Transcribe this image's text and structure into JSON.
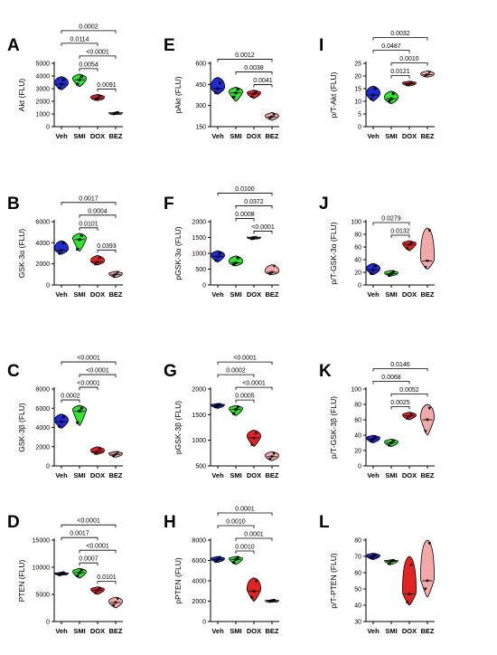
{
  "colors": {
    "Veh": "#1f2bd6",
    "SMI": "#2ee62e",
    "DOX": "#e32222",
    "BEZ": "#f4a9a9"
  },
  "chart_data": [
    {
      "type": "violin",
      "letter": "A",
      "ylabel": "Akt (FLU)",
      "categories": [
        "Veh",
        "SMI",
        "DOX",
        "BEZ"
      ],
      "yticks": [
        0,
        1000,
        2000,
        3000,
        4000,
        5000
      ],
      "ylim": [
        0,
        5000
      ],
      "series": [
        {
          "min": 2900,
          "max": 3950,
          "median": 3350,
          "points": [
            3050,
            3350,
            3700
          ]
        },
        {
          "min": 3150,
          "max": 4150,
          "median": 3700,
          "points": [
            3350,
            3700,
            3950
          ]
        },
        {
          "min": 2050,
          "max": 2550,
          "median": 2250,
          "points": [
            2150,
            2250,
            2450
          ]
        },
        {
          "min": 950,
          "max": 1150,
          "median": 1050,
          "points": [
            980,
            1050,
            1110
          ]
        }
      ],
      "comparisons": [
        {
          "from": 0,
          "to": 3,
          "p": "0.0002"
        },
        {
          "from": 1,
          "to": 3,
          "p": "<0.0001"
        },
        {
          "from": 0,
          "to": 2,
          "p": "0.0114"
        },
        {
          "from": 2,
          "to": 3,
          "p": "0.0091"
        },
        {
          "from": 1,
          "to": 2,
          "p": "0.0054"
        }
      ]
    },
    {
      "type": "violin",
      "letter": "E",
      "ylabel": "pAkt (FLU)",
      "categories": [
        "Veh",
        "SMI",
        "DOX",
        "BEZ"
      ],
      "yticks": [
        150,
        300,
        450,
        600
      ],
      "ylim": [
        150,
        600
      ],
      "series": [
        {
          "min": 380,
          "max": 500,
          "median": 420,
          "points": [
            390,
            420,
            460
          ]
        },
        {
          "min": 330,
          "max": 430,
          "median": 390,
          "points": [
            360,
            390,
            415
          ]
        },
        {
          "min": 350,
          "max": 410,
          "median": 385,
          "points": [
            365,
            385,
            400
          ]
        },
        {
          "min": 195,
          "max": 250,
          "median": 220,
          "points": [
            210,
            220,
            235
          ]
        }
      ],
      "comparisons": [
        {
          "from": 0,
          "to": 3,
          "p": "0.0012"
        },
        {
          "from": 1,
          "to": 3,
          "p": "0.0038"
        },
        {
          "from": 2,
          "to": 3,
          "p": "0.0041"
        }
      ]
    },
    {
      "type": "violin",
      "letter": "I",
      "ylabel": "p/T-Akt (FLU)",
      "categories": [
        "Veh",
        "SMI",
        "DOX",
        "BEZ"
      ],
      "yticks": [
        0,
        5,
        10,
        15,
        20,
        25
      ],
      "ylim": [
        0,
        25
      ],
      "series": [
        {
          "min": 10,
          "max": 16,
          "median": 12.5,
          "points": [
            11,
            12.5,
            15
          ]
        },
        {
          "min": 9,
          "max": 14,
          "median": 11,
          "points": [
            10,
            11,
            13
          ]
        },
        {
          "min": 16,
          "max": 18,
          "median": 17,
          "points": [
            16.5,
            17,
            17.5
          ]
        },
        {
          "min": 19.5,
          "max": 22,
          "median": 20.5,
          "points": [
            20,
            20.5,
            21.5
          ]
        }
      ],
      "comparisons": [
        {
          "from": 0,
          "to": 3,
          "p": "0.0032"
        },
        {
          "from": 1,
          "to": 3,
          "p": "0.0010"
        },
        {
          "from": 0,
          "to": 2,
          "p": "0.0487"
        },
        {
          "from": 1,
          "to": 2,
          "p": "0.0121"
        }
      ]
    },
    {
      "type": "violin",
      "letter": "B",
      "ylabel": "GSK-3α (FLU)",
      "categories": [
        "Veh",
        "SMI",
        "DOX",
        "BEZ"
      ],
      "yticks": [
        0,
        2000,
        4000,
        6000
      ],
      "ylim": [
        0,
        6000
      ],
      "series": [
        {
          "min": 2900,
          "max": 4200,
          "median": 3300,
          "points": [
            3000,
            3300,
            4000
          ]
        },
        {
          "min": 3200,
          "max": 4900,
          "median": 4300,
          "points": [
            3400,
            4300,
            4700
          ]
        },
        {
          "min": 1900,
          "max": 2800,
          "median": 2200,
          "points": [
            2000,
            2200,
            2600
          ]
        },
        {
          "min": 700,
          "max": 1300,
          "median": 1000,
          "points": [
            800,
            1000,
            1200
          ]
        }
      ],
      "comparisons": [
        {
          "from": 0,
          "to": 3,
          "p": "0.0017"
        },
        {
          "from": 1,
          "to": 3,
          "p": "0.0004"
        },
        {
          "from": 2,
          "to": 3,
          "p": "0.0393"
        },
        {
          "from": 1,
          "to": 2,
          "p": "0.0101"
        }
      ]
    },
    {
      "type": "violin",
      "letter": "F",
      "ylabel": "pGSK-3α (FLU)",
      "categories": [
        "Veh",
        "SMI",
        "DOX",
        "BEZ"
      ],
      "yticks": [
        0,
        500,
        1000,
        1500,
        2000
      ],
      "ylim": [
        0,
        2000
      ],
      "series": [
        {
          "min": 720,
          "max": 1080,
          "median": 900,
          "points": [
            780,
            900,
            1000
          ]
        },
        {
          "min": 600,
          "max": 920,
          "median": 700,
          "points": [
            640,
            700,
            850
          ]
        },
        {
          "min": 1440,
          "max": 1530,
          "median": 1490,
          "points": [
            1460,
            1490,
            1510
          ]
        },
        {
          "min": 320,
          "max": 640,
          "median": 400,
          "points": [
            350,
            400,
            600
          ]
        }
      ],
      "comparisons": [
        {
          "from": 0,
          "to": 3,
          "p": "0.0100"
        },
        {
          "from": 1,
          "to": 3,
          "p": "0.0372"
        },
        {
          "from": 2,
          "to": 3,
          "p": "<0.0001"
        },
        {
          "from": 1,
          "to": 2,
          "p": "0.0008"
        }
      ]
    },
    {
      "type": "violin",
      "letter": "J",
      "ylabel": "p/T-GSK-3α (FLU)",
      "categories": [
        "Veh",
        "SMI",
        "DOX",
        "BEZ"
      ],
      "yticks": [
        0,
        20,
        40,
        60,
        80,
        100
      ],
      "ylim": [
        0,
        100
      ],
      "series": [
        {
          "min": 16,
          "max": 34,
          "median": 24,
          "points": [
            18,
            24,
            30
          ]
        },
        {
          "min": 14,
          "max": 23,
          "median": 18,
          "points": [
            15,
            18,
            21
          ]
        },
        {
          "min": 54,
          "max": 70,
          "median": 64,
          "points": [
            58,
            64,
            67
          ]
        },
        {
          "min": 25,
          "max": 90,
          "median": 38,
          "points": [
            28,
            38,
            86
          ]
        }
      ],
      "comparisons": [
        {
          "from": 0,
          "to": 2,
          "p": "0.0279"
        },
        {
          "from": 1,
          "to": 2,
          "p": "0.0132"
        }
      ]
    },
    {
      "type": "violin",
      "letter": "C",
      "ylabel": "GSK-3β (FLU)",
      "categories": [
        "Veh",
        "SMI",
        "DOX",
        "BEZ"
      ],
      "yticks": [
        0,
        2000,
        4000,
        6000,
        8000
      ],
      "ylim": [
        0,
        8000
      ],
      "series": [
        {
          "min": 3900,
          "max": 5400,
          "median": 4600,
          "points": [
            4100,
            4600,
            5100
          ]
        },
        {
          "min": 4200,
          "max": 6300,
          "median": 5700,
          "points": [
            4500,
            5700,
            6000
          ]
        },
        {
          "min": 1200,
          "max": 2000,
          "median": 1500,
          "points": [
            1300,
            1500,
            1800
          ]
        },
        {
          "min": 900,
          "max": 1500,
          "median": 1200,
          "points": [
            1000,
            1200,
            1400
          ]
        }
      ],
      "comparisons": [
        {
          "from": 0,
          "to": 3,
          "p": "<0.0001"
        },
        {
          "from": 1,
          "to": 3,
          "p": "<0.0001"
        },
        {
          "from": 0,
          "to": 1,
          "p": "0.0002"
        },
        {
          "from": 1,
          "to": 2,
          "p": "<0.0001"
        }
      ]
    },
    {
      "type": "violin",
      "letter": "G",
      "ylabel": "pGSK-3β (FLU)",
      "categories": [
        "Veh",
        "SMI",
        "DOX",
        "BEZ"
      ],
      "yticks": [
        500,
        1000,
        1500,
        2000
      ],
      "ylim": [
        500,
        2000
      ],
      "series": [
        {
          "min": 1620,
          "max": 1720,
          "median": 1680,
          "points": [
            1650,
            1680,
            1700
          ]
        },
        {
          "min": 1480,
          "max": 1680,
          "median": 1600,
          "points": [
            1520,
            1600,
            1650
          ]
        },
        {
          "min": 880,
          "max": 1200,
          "median": 1050,
          "points": [
            920,
            1050,
            1150
          ]
        },
        {
          "min": 600,
          "max": 780,
          "median": 680,
          "points": [
            630,
            680,
            740
          ]
        }
      ],
      "comparisons": [
        {
          "from": 0,
          "to": 3,
          "p": "<0.0001"
        },
        {
          "from": 1,
          "to": 3,
          "p": "<0.0001"
        },
        {
          "from": 0,
          "to": 2,
          "p": "0.0002"
        },
        {
          "from": 1,
          "to": 2,
          "p": "0.0005"
        }
      ]
    },
    {
      "type": "violin",
      "letter": "K",
      "ylabel": "p/T-GSK-3β (FLU)",
      "categories": [
        "Veh",
        "SMI",
        "DOX",
        "BEZ"
      ],
      "yticks": [
        0,
        20,
        40,
        60,
        80,
        100
      ],
      "ylim": [
        0,
        100
      ],
      "series": [
        {
          "min": 30,
          "max": 40,
          "median": 35,
          "points": [
            32,
            35,
            38
          ]
        },
        {
          "min": 25,
          "max": 35,
          "median": 30,
          "points": [
            27,
            30,
            33
          ]
        },
        {
          "min": 60,
          "max": 70,
          "median": 65,
          "points": [
            62,
            65,
            68
          ]
        },
        {
          "min": 40,
          "max": 80,
          "median": 60,
          "points": [
            45,
            60,
            75
          ]
        }
      ],
      "comparisons": [
        {
          "from": 0,
          "to": 3,
          "p": "0.0146"
        },
        {
          "from": 1,
          "to": 3,
          "p": "0.0052"
        },
        {
          "from": 0,
          "to": 2,
          "p": "0.0068"
        },
        {
          "from": 1,
          "to": 2,
          "p": "0.0025"
        }
      ]
    },
    {
      "type": "violin",
      "letter": "D",
      "ylabel": "PTEN (FLU)",
      "categories": [
        "Veh",
        "SMI",
        "DOX",
        "BEZ"
      ],
      "yticks": [
        0,
        5000,
        10000,
        15000
      ],
      "ylim": [
        0,
        15000
      ],
      "series": [
        {
          "min": 8500,
          "max": 9100,
          "median": 8800,
          "points": [
            8600,
            8800,
            9000
          ]
        },
        {
          "min": 8000,
          "max": 9800,
          "median": 9000,
          "points": [
            8400,
            9000,
            9500
          ]
        },
        {
          "min": 5000,
          "max": 6400,
          "median": 5800,
          "points": [
            5300,
            5800,
            6200
          ]
        },
        {
          "min": 2500,
          "max": 4500,
          "median": 3500,
          "points": [
            3000,
            3500,
            4200
          ]
        }
      ],
      "comparisons": [
        {
          "from": 0,
          "to": 3,
          "p": "<0.0001"
        },
        {
          "from": 1,
          "to": 3,
          "p": "<0.0001"
        },
        {
          "from": 0,
          "to": 2,
          "p": "0.0017"
        },
        {
          "from": 2,
          "to": 3,
          "p": "0.0101"
        },
        {
          "from": 1,
          "to": 2,
          "p": "0.0007"
        }
      ]
    },
    {
      "type": "violin",
      "letter": "H",
      "ylabel": "pPTEN (FLU)",
      "categories": [
        "Veh",
        "SMI",
        "DOX",
        "BEZ"
      ],
      "yticks": [
        0,
        2000,
        4000,
        6000,
        8000
      ],
      "ylim": [
        0,
        8000
      ],
      "series": [
        {
          "min": 5800,
          "max": 6400,
          "median": 6100,
          "points": [
            5900,
            6100,
            6300
          ]
        },
        {
          "min": 5600,
          "max": 6400,
          "median": 6100,
          "points": [
            5800,
            6100,
            6300
          ]
        },
        {
          "min": 2000,
          "max": 4300,
          "median": 3000,
          "points": [
            2400,
            3000,
            4000
          ]
        },
        {
          "min": 1900,
          "max": 2150,
          "median": 2000,
          "points": [
            1950,
            2000,
            2100
          ]
        }
      ],
      "comparisons": [
        {
          "from": 0,
          "to": 3,
          "p": "0.0001"
        },
        {
          "from": 1,
          "to": 3,
          "p": "0.0001"
        },
        {
          "from": 0,
          "to": 2,
          "p": "0.0010"
        },
        {
          "from": 1,
          "to": 2,
          "p": "0.0010"
        }
      ]
    },
    {
      "type": "violin",
      "letter": "L",
      "ylabel": "p/T-PTEN (FLU)",
      "categories": [
        "Veh",
        "SMI",
        "DOX",
        "BEZ"
      ],
      "yticks": [
        30,
        40,
        50,
        60,
        70,
        80
      ],
      "ylim": [
        30,
        80
      ],
      "series": [
        {
          "min": 68,
          "max": 72,
          "median": 70,
          "points": [
            69,
            70,
            71
          ]
        },
        {
          "min": 65,
          "max": 68,
          "median": 67,
          "points": [
            65.5,
            67,
            67.5
          ]
        },
        {
          "min": 40,
          "max": 70,
          "median": 47,
          "points": [
            42,
            47,
            65
          ]
        },
        {
          "min": 45,
          "max": 80,
          "median": 55,
          "points": [
            50,
            55,
            78
          ]
        }
      ],
      "comparisons": []
    }
  ]
}
